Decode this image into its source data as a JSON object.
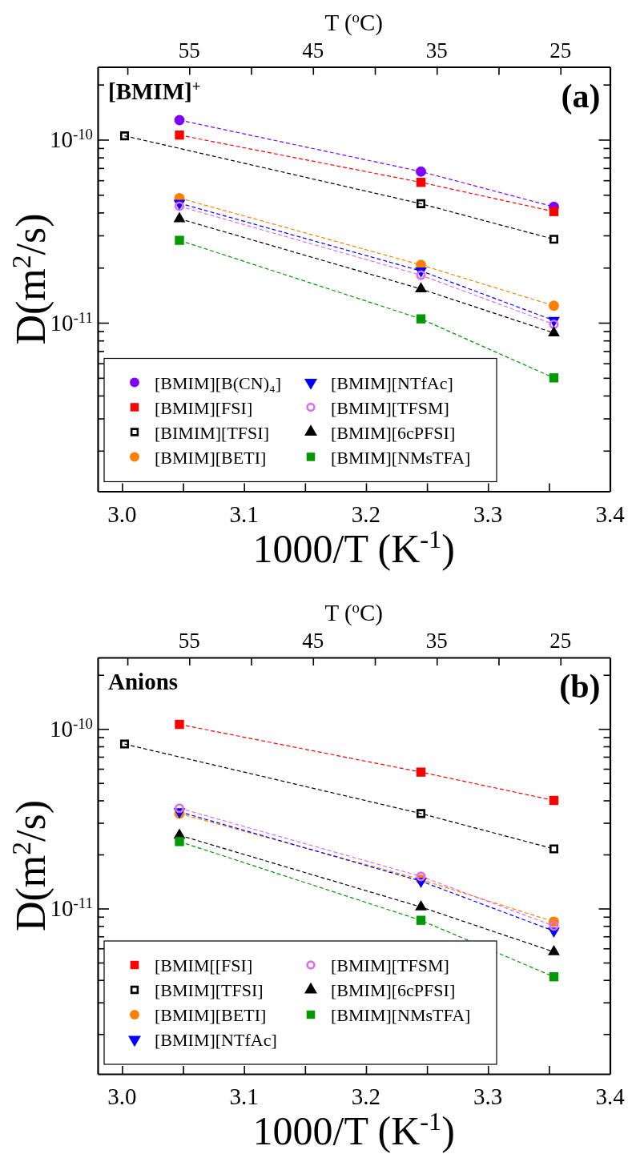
{
  "chart_data": [
    {
      "type": "line",
      "xlabel": "1000/T (K$^{-1}$)",
      "ylabel": "D(m$^{2}$/s)",
      "x2label": "T ($^{o}$C)",
      "annotations": [
        "[BMIM]$^{+}$",
        "(a)"
      ],
      "log": "y",
      "legend": "bottom left",
      "line_style": "dashed",
      "xlim": [
        2.98,
        3.4
      ],
      "xticks": [
        {
          "value": 3.0,
          "label": "3.0"
        },
        {
          "value": 3.05,
          "label": null
        },
        3.1,
        {
          "value": 3.15,
          "label": null
        },
        3.2,
        {
          "value": 3.25,
          "label": null
        },
        3.3,
        {
          "value": 3.35,
          "label": null
        },
        3.4
      ],
      "x2lim": [
        62.4,
        21.0
      ],
      "x2ticks": [
        {
          "value": 60,
          "label": null
        },
        55,
        {
          "value": 50,
          "label": null
        },
        45,
        {
          "value": 40,
          "label": null
        },
        35,
        {
          "value": 30,
          "label": null
        },
        25
      ],
      "ylim": [
        1.2e-12,
        2.5e-10
      ],
      "yticks": [
        {
          "value": 2e-12,
          "label": null
        },
        {
          "value": 3e-12,
          "label": null
        },
        {
          "value": 4e-12,
          "label": null
        },
        {
          "value": 5e-12,
          "label": null
        },
        {
          "value": 6e-12,
          "label": null
        },
        {
          "value": 7e-12,
          "label": null
        },
        {
          "value": 8e-12,
          "label": null
        },
        {
          "value": 9e-12,
          "label": null
        },
        {
          "value": 1e-11,
          "label": "10$^{-11}$"
        },
        {
          "value": 2e-11,
          "label": null
        },
        {
          "value": 3e-11,
          "label": null
        },
        {
          "value": 4e-11,
          "label": null
        },
        {
          "value": 5e-11,
          "label": null
        },
        {
          "value": 6e-11,
          "label": null
        },
        {
          "value": 7e-11,
          "label": null
        },
        {
          "value": 8e-11,
          "label": null
        },
        {
          "value": 9e-11,
          "label": null
        },
        {
          "value": 1e-10,
          "label": "10$^{-10}$"
        },
        {
          "value": 2e-10,
          "label": null
        }
      ],
      "series": [
        {
          "name": "[BMIM][B(CN)₄]",
          "color": "#7f00ff",
          "marker": "circle",
          "x": [
            3.047,
            3.245,
            3.354
          ],
          "values": [
            1.28e-10,
            6.7e-11,
            4.3e-11
          ]
        },
        {
          "name": "[BMIM][FSI]",
          "color": "#ff0000",
          "marker": "square",
          "x": [
            3.047,
            3.245,
            3.354
          ],
          "values": [
            1.06e-10,
            5.85e-11,
            4.05e-11
          ]
        },
        {
          "name": "[BIMIM][TFSI]",
          "color": "#000000",
          "marker": "square-open",
          "x": [
            3.002,
            3.245,
            3.354
          ],
          "values": [
            1.05e-10,
            4.47e-11,
            2.86e-11
          ]
        },
        {
          "name": "[BMIM][BETI]",
          "color": "#ff8000",
          "marker": "circle",
          "x": [
            3.047,
            3.245,
            3.354
          ],
          "values": [
            4.8e-11,
            2.07e-11,
            1.24e-11
          ]
        },
        {
          "name": "[BMIM][NTfAc]",
          "color": "#0000ff",
          "marker": "triangle-down",
          "x": [
            3.047,
            3.245,
            3.354
          ],
          "values": [
            4.5e-11,
            1.92e-11,
            1.03e-11
          ]
        },
        {
          "name": "[BMIM][TFSM]",
          "color": "#dd6ef0",
          "marker": "circle-open",
          "x": [
            3.047,
            3.245,
            3.354
          ],
          "values": [
            4.33e-11,
            1.82e-11,
            9.8e-12
          ]
        },
        {
          "name": "[BMIM][6cPFSI]",
          "color": "#000000",
          "marker": "triangle",
          "x": [
            3.047,
            3.245,
            3.354
          ],
          "values": [
            3.7e-11,
            1.53e-11,
            8.8e-12
          ]
        },
        {
          "name": "[BMIM][NMsTFA]",
          "color": "#009900",
          "marker": "square",
          "x": [
            3.047,
            3.245,
            3.354
          ],
          "values": [
            2.82e-11,
            1.05e-11,
            5e-12
          ]
        }
      ]
    },
    {
      "type": "line",
      "xlabel": "1000/T (K$^{-1}$)",
      "ylabel": "D(m$^{2}$/s)",
      "x2label": "T ($^{o}$C)",
      "annotations": [
        "Anions",
        "(b)"
      ],
      "log": "y",
      "legend": "bottom left",
      "line_style": "dashed",
      "xlim": [
        2.98,
        3.4
      ],
      "xticks": [
        {
          "value": 3.0,
          "label": "3.0"
        },
        {
          "value": 3.05,
          "label": null
        },
        3.1,
        {
          "value": 3.15,
          "label": null
        },
        3.2,
        {
          "value": 3.25,
          "label": null
        },
        3.3,
        {
          "value": 3.35,
          "label": null
        },
        3.4
      ],
      "x2lim": [
        62.4,
        21.0
      ],
      "x2ticks": [
        {
          "value": 60,
          "label": null
        },
        55,
        {
          "value": 50,
          "label": null
        },
        45,
        {
          "value": 40,
          "label": null
        },
        35,
        {
          "value": 30,
          "label": null
        },
        25
      ],
      "ylim": [
        1.2e-12,
        2.5e-10
      ],
      "yticks": [
        {
          "value": 2e-12,
          "label": null
        },
        {
          "value": 3e-12,
          "label": null
        },
        {
          "value": 4e-12,
          "label": null
        },
        {
          "value": 5e-12,
          "label": null
        },
        {
          "value": 6e-12,
          "label": null
        },
        {
          "value": 7e-12,
          "label": null
        },
        {
          "value": 8e-12,
          "label": null
        },
        {
          "value": 9e-12,
          "label": null
        },
        {
          "value": 1e-11,
          "label": "10$^{-11}$"
        },
        {
          "value": 2e-11,
          "label": null
        },
        {
          "value": 3e-11,
          "label": null
        },
        {
          "value": 4e-11,
          "label": null
        },
        {
          "value": 5e-11,
          "label": null
        },
        {
          "value": 6e-11,
          "label": null
        },
        {
          "value": 7e-11,
          "label": null
        },
        {
          "value": 8e-11,
          "label": null
        },
        {
          "value": 9e-11,
          "label": null
        },
        {
          "value": 1e-10,
          "label": "10$^{-10}$"
        },
        {
          "value": 2e-10,
          "label": null
        }
      ],
      "series": [
        {
          "name": "[BMIM[[FSI]",
          "color": "#ff0000",
          "marker": "square",
          "x": [
            3.047,
            3.245,
            3.354
          ],
          "values": [
            1.06e-10,
            5.75e-11,
            4e-11
          ]
        },
        {
          "name": "[BMIM][TFSI]",
          "color": "#000000",
          "marker": "square-open",
          "x": [
            3.002,
            3.245,
            3.354
          ],
          "values": [
            8.24e-11,
            3.38e-11,
            2.15e-11
          ]
        },
        {
          "name": "[BMIM][BETI]",
          "color": "#ff8000",
          "marker": "circle",
          "x": [
            3.047,
            3.245,
            3.354
          ],
          "values": [
            3.38e-11,
            1.45e-11,
            8.45e-12
          ]
        },
        {
          "name": "[BMIM][NTfAc]",
          "color": "#0000ff",
          "marker": "triangle-down",
          "x": [
            3.047,
            3.245,
            3.354
          ],
          "values": [
            3.46e-11,
            1.42e-11,
            7.5e-12
          ]
        },
        {
          "name": "[BMIM][TFSM]",
          "color": "#dd6ef0",
          "marker": "circle-open",
          "x": [
            3.047,
            3.245,
            3.354
          ],
          "values": [
            3.62e-11,
            1.51e-11,
            8e-12
          ]
        },
        {
          "name": "[BMIM][6cPFSI]",
          "color": "#000000",
          "marker": "triangle",
          "x": [
            3.047,
            3.245,
            3.354
          ],
          "values": [
            2.56e-11,
            1.02e-11,
            5.74e-12
          ]
        },
        {
          "name": "[BMIM][NMsTFA]",
          "color": "#009900",
          "marker": "square",
          "x": [
            3.047,
            3.245,
            3.354
          ],
          "values": [
            2.36e-11,
            8.6e-12,
            4.17e-12
          ]
        }
      ]
    }
  ]
}
